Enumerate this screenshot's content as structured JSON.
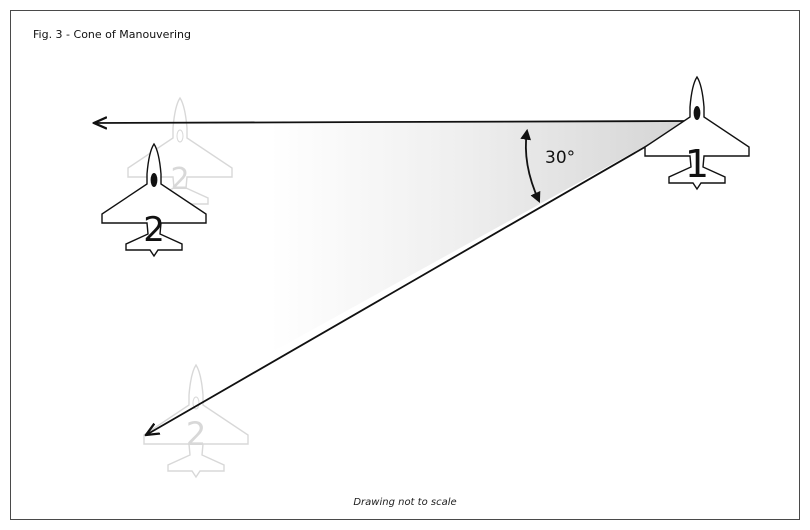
{
  "figure": {
    "caption": "Fig. 3 - Cone of Manouvering",
    "footnote": "Drawing not to scale",
    "angle_label": "30°"
  },
  "aircraft": {
    "lead_label": "1",
    "wingman_label": "2",
    "ghost_top_label": "2",
    "ghost_bottom_label": "2"
  },
  "colors": {
    "line": "#111111",
    "frame": "#4a4a4a",
    "ghost": "#d8d8d8",
    "cone_shade": "#dcdcdc"
  }
}
